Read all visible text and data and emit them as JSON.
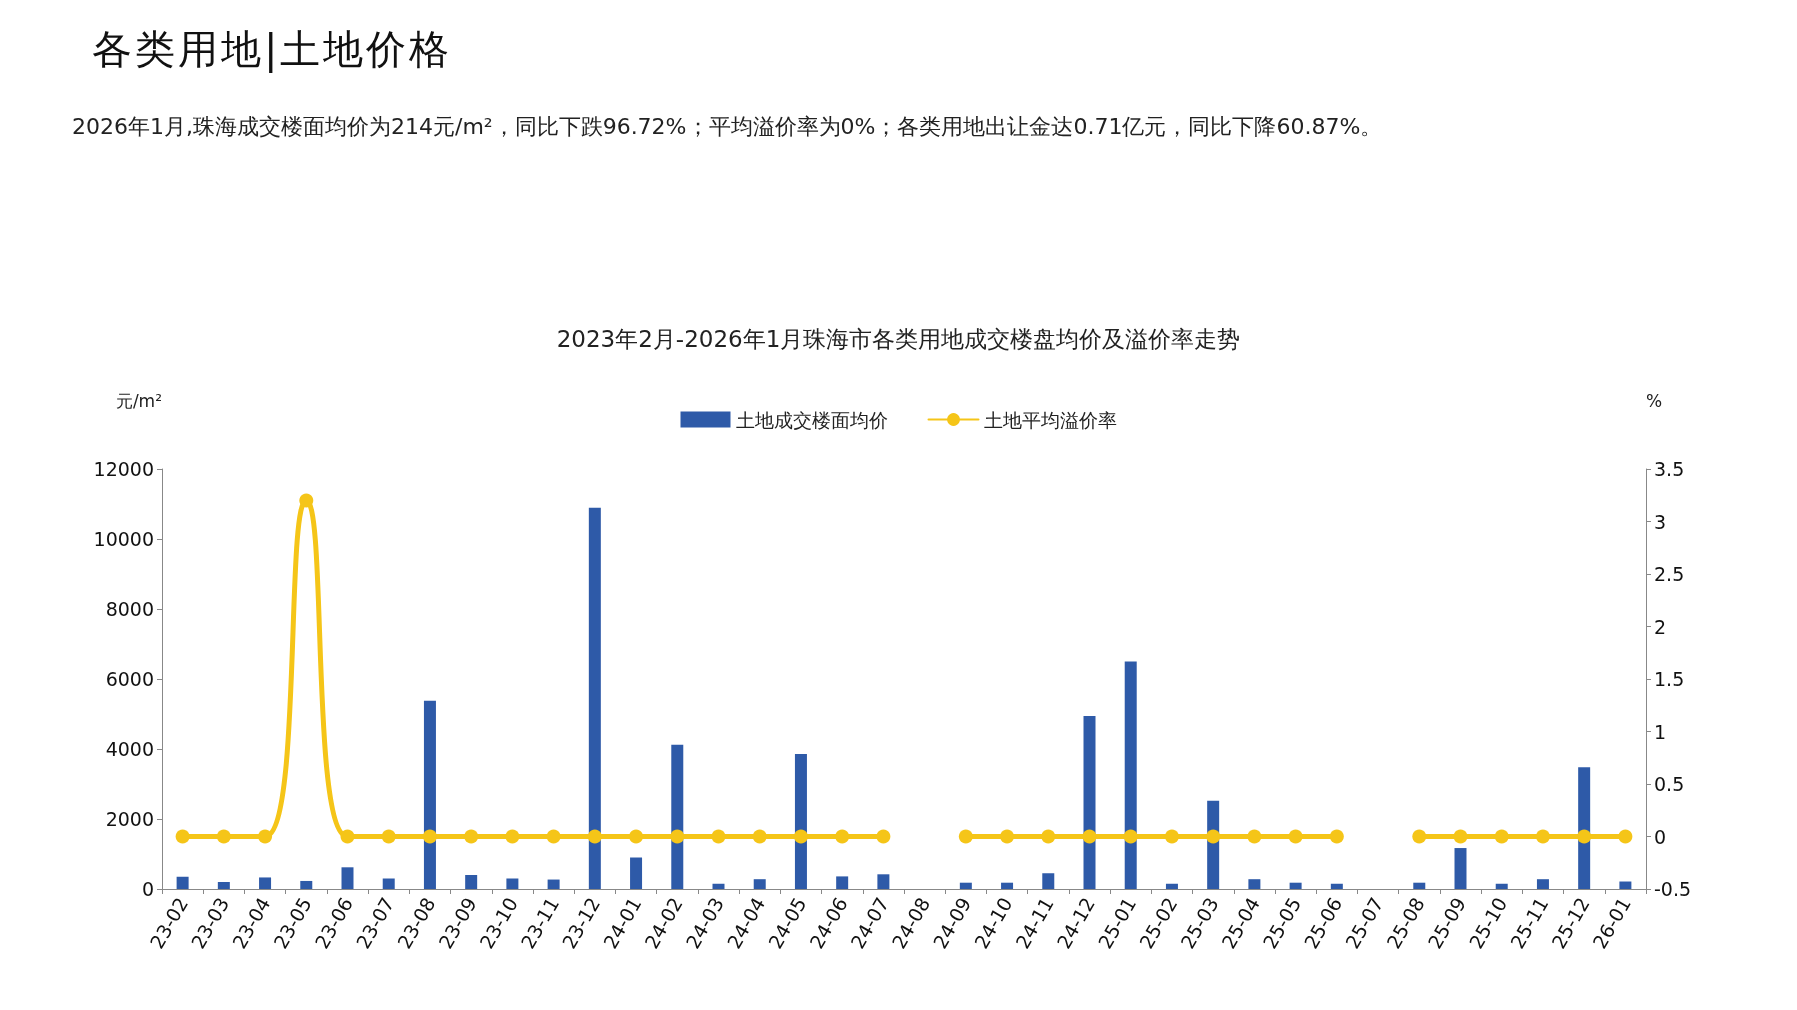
{
  "chart_data": {
    "type": "bar",
    "title": "2023年2月-2026年1月珠海市各类用地成交楼盘均价及溢价率走势",
    "annotations": [
      "各类用地|土地价格",
      "2026年1月,珠海成交楼面均价为214元/m²，同比下跌96.72%；平均溢价率为0%；各类用地出让金达0.71亿元，同比下降60.87%。"
    ],
    "ylabel": "元/m²",
    "y2label": "%",
    "categories": [
      "23-02",
      "23-03",
      "23-04",
      "23-05",
      "23-06",
      "23-07",
      "23-08",
      "23-09",
      "23-10",
      "23-11",
      "23-12",
      "24-01",
      "24-02",
      "24-03",
      "24-04",
      "24-05",
      "24-06",
      "24-07",
      "24-08",
      "24-09",
      "24-10",
      "24-11",
      "24-12",
      "25-01",
      "25-02",
      "25-03",
      "25-04",
      "25-05",
      "25-06",
      "25-07",
      "25-08",
      "25-09",
      "25-10",
      "25-11",
      "25-12",
      "26-01"
    ],
    "series": [
      {
        "name": "土地成交楼面均价",
        "color": "#2e5aa8",
        "values": [
          350,
          200,
          330,
          230,
          620,
          300,
          5380,
          400,
          300,
          270,
          10890,
          900,
          4120,
          150,
          280,
          3860,
          360,
          420,
          null,
          180,
          180,
          450,
          4940,
          6500,
          150,
          2520,
          280,
          180,
          150,
          null,
          180,
          1170,
          150,
          280,
          3480,
          214
        ]
      },
      {
        "name": "土地平均溢价率",
        "type": "line",
        "axis": "y2",
        "color": "#f5c518",
        "values": [
          0,
          0,
          0,
          3.2,
          0,
          0,
          0,
          0,
          0,
          0,
          0,
          0,
          0,
          0,
          0,
          0,
          0,
          0,
          null,
          0,
          0,
          0,
          0,
          0,
          0,
          0,
          0,
          0,
          0,
          null,
          0,
          0,
          0,
          0,
          0,
          0
        ]
      }
    ],
    "ylim": [
      0,
      12000
    ],
    "yticks": [
      0,
      2000,
      4000,
      6000,
      8000,
      10000,
      12000
    ],
    "y2lim": [
      -0.5,
      3.5
    ],
    "y2ticks": [
      -0.5,
      0,
      0.5,
      1,
      1.5,
      2,
      2.5,
      3,
      3.5
    ],
    "legend": "top",
    "grid": false,
    "marker": "circle",
    "line_style": "solid"
  }
}
